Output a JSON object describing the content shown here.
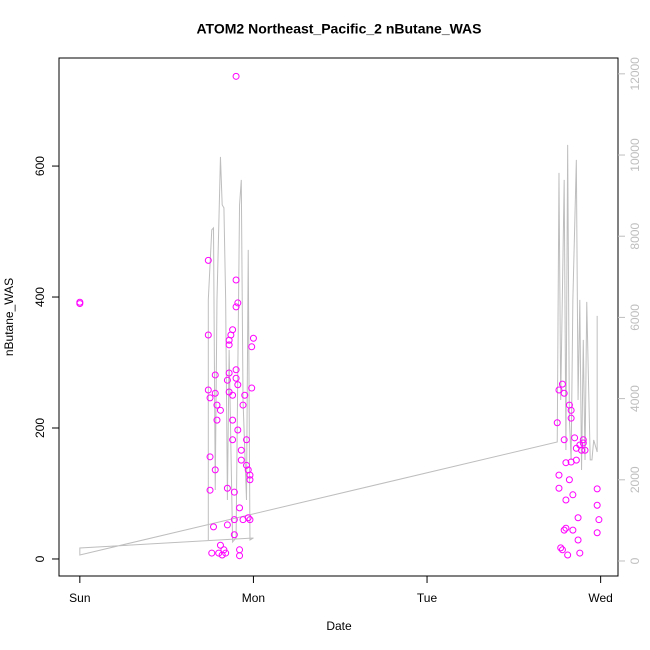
{
  "chart_data": {
    "type": "scatter",
    "title": "ATOM2 Northeast_Pacific_2 nButane_WAS",
    "xlabel": "Date",
    "ylabel": "nButane_WAS",
    "xlim": [
      -0.12,
      3.1
    ],
    "ylim": [
      -26,
      765
    ],
    "y2lim": [
      -370,
      12390
    ],
    "xticks": [
      {
        "value": 0,
        "label": "Sun"
      },
      {
        "value": 1,
        "label": "Mon"
      },
      {
        "value": 2,
        "label": "Tue"
      },
      {
        "value": 3,
        "label": "Wed"
      }
    ],
    "yticks": [
      0,
      200,
      400,
      600
    ],
    "y2ticks": [
      0,
      2000,
      4000,
      6000,
      8000,
      10000,
      12000
    ],
    "grid": false,
    "series": [
      {
        "type": "line",
        "axis": "y2",
        "color": "#bebebe",
        "x": [
          0.74,
          0.74,
          0.76,
          0.77,
          0.78,
          0.79,
          0.81,
          0.82,
          0.83,
          0.84,
          0.85,
          0.86,
          0.88,
          0.9,
          0.92,
          0.93,
          0.94,
          0.96,
          0.97,
          0.98,
          1.0,
          0.0,
          0.0,
          2.75,
          2.76,
          2.77,
          2.79,
          2.8,
          2.81,
          2.82,
          2.83,
          2.84,
          2.86,
          2.87,
          2.88,
          2.89,
          2.9,
          2.91,
          2.92,
          2.94,
          2.95,
          2.96,
          2.98,
          2.98
        ],
        "values": [
          517,
          6431,
          8156,
          8205,
          1749,
          6431,
          9955,
          8772,
          8698,
          6431,
          1503,
          5199,
          468,
          567,
          8772,
          9388,
          3967,
          1503,
          7663,
          517,
          567,
          320,
          148,
          2932,
          9560,
          3967,
          9388,
          2735,
          10250,
          3474,
          2489,
          6431,
          9881,
          3967,
          6431,
          2242,
          5445,
          2489,
          6382,
          2489,
          2489,
          2981,
          2686,
          6037
        ]
      },
      {
        "type": "points",
        "color": "#ff00ff",
        "x": [
          0,
          0,
          0.74,
          0.74,
          0.74,
          0.75,
          0.75,
          0.75,
          0.76,
          0.77,
          0.78,
          0.78,
          0.78,
          0.79,
          0.79,
          0.81,
          0.8,
          0.81,
          0.82,
          0.83,
          0.84,
          0.85,
          0.85,
          0.85,
          0.86,
          0.86,
          0.86,
          0.86,
          0.87,
          0.88,
          0.88,
          0.88,
          0.88,
          0.89,
          0.89,
          0.89,
          0.9,
          0.9,
          0.9,
          0.9,
          0.91,
          0.91,
          0.92,
          0.92,
          0.92,
          0.93,
          0.93,
          0.94,
          0.94,
          0.95,
          0.96,
          0.96,
          0.97,
          0.97,
          0.98,
          0.98,
          0.99,
          0.99,
          1.0,
          0.98,
          0.9,
          0.91,
          2.75,
          2.76,
          2.76,
          2.77,
          2.78,
          2.78,
          2.79,
          2.79,
          2.8,
          2.8,
          2.8,
          2.81,
          2.82,
          2.82,
          2.83,
          2.83,
          2.83,
          2.84,
          2.84,
          2.85,
          2.86,
          2.86,
          2.87,
          2.87,
          2.88,
          2.88,
          2.89,
          2.9,
          2.9,
          2.91,
          2.98,
          2.98,
          2.99,
          2.98,
          2.76,
          2.79
        ],
        "values": [
          392,
          390,
          456,
          342,
          258,
          246,
          156,
          105,
          9,
          49,
          136,
          281,
          253,
          212,
          235,
          227,
          9,
          21,
          6,
          14,
          9,
          52,
          108,
          273,
          284,
          255,
          334,
          327,
          342,
          350,
          250,
          212,
          182,
          102,
          60,
          37,
          426,
          385,
          289,
          276,
          266,
          197,
          78,
          14,
          5,
          166,
          151,
          235,
          60,
          250,
          182,
          143,
          63,
          136,
          128,
          121,
          261,
          324,
          337,
          60,
          737,
          391,
          208,
          128,
          108,
          17,
          14,
          267,
          253,
          182,
          147,
          90,
          47,
          6,
          235,
          121,
          227,
          215,
          148,
          98,
          44,
          185,
          169,
          151,
          63,
          29,
          9,
          174,
          166,
          177,
          182,
          166,
          107,
          82,
          60,
          40,
          258,
          44
        ]
      }
    ]
  }
}
